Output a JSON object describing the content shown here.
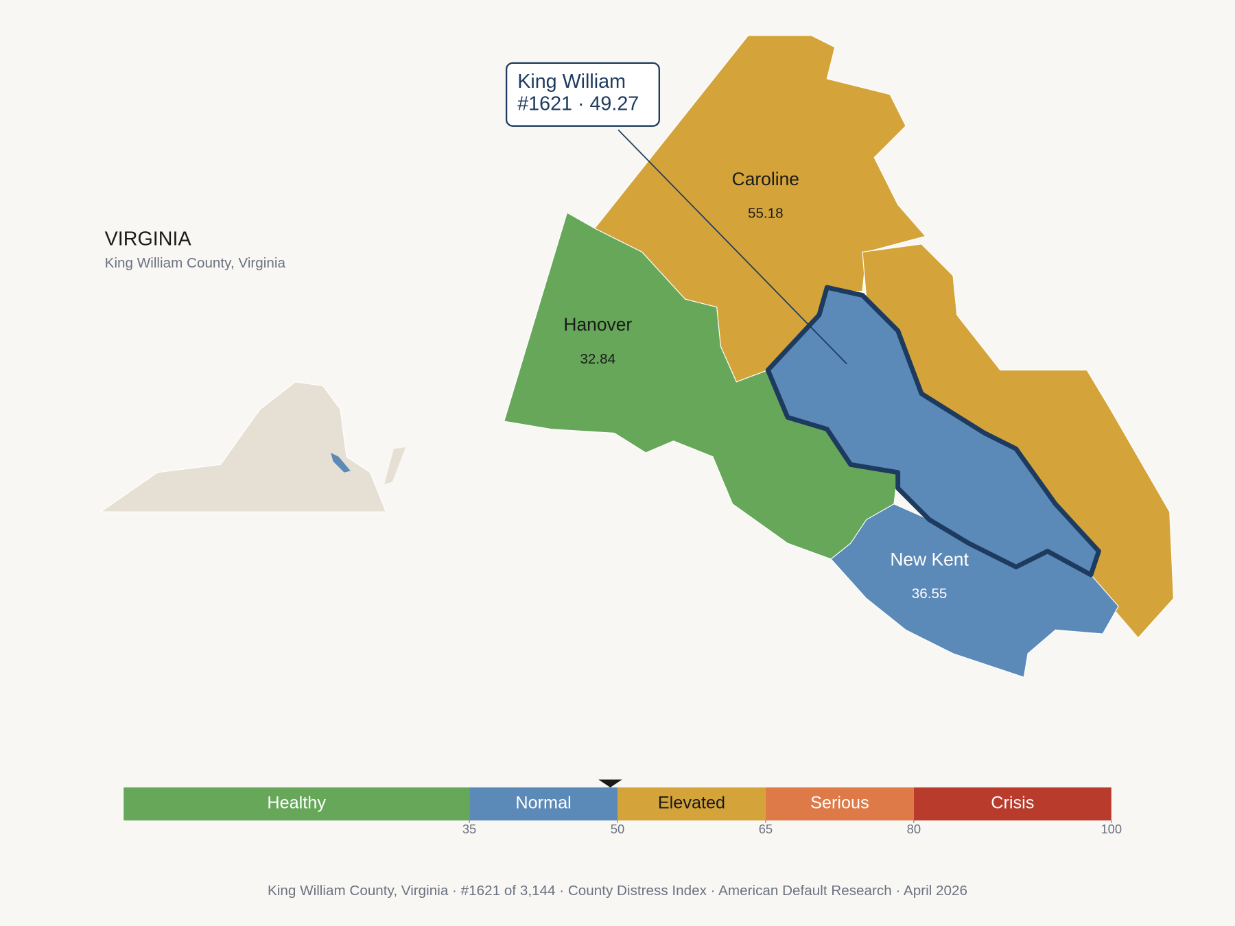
{
  "state": {
    "title": "VIRGINIA",
    "subtitle": "King William County, Virginia"
  },
  "callout": {
    "name": "King William",
    "detail": "#1621 · 49.27"
  },
  "counties": [
    {
      "name": "Caroline",
      "value": "55.18"
    },
    {
      "name": "Hanover",
      "value": "32.84"
    },
    {
      "name": "New Kent",
      "value": "36.55"
    }
  ],
  "scale": {
    "range": [
      0,
      100
    ],
    "marker": 49.27,
    "bands": [
      {
        "label": "Healthy",
        "from": 0,
        "to": 35,
        "color": "#67a75a"
      },
      {
        "label": "Normal",
        "from": 35,
        "to": 50,
        "color": "#5b89b8"
      },
      {
        "label": "Elevated",
        "from": 50,
        "to": 65,
        "color": "#d4a43b"
      },
      {
        "label": "Serious",
        "from": 65,
        "to": 80,
        "color": "#dd7a48"
      },
      {
        "label": "Crisis",
        "from": 80,
        "to": 100,
        "color": "#b83b2c"
      }
    ],
    "ticks": [
      35,
      50,
      65,
      80,
      100
    ]
  },
  "footer": "King William County, Virginia  ·  #1621 of 3,144  ·  County Distress Index  ·  American Default Research  ·  April 2026"
}
